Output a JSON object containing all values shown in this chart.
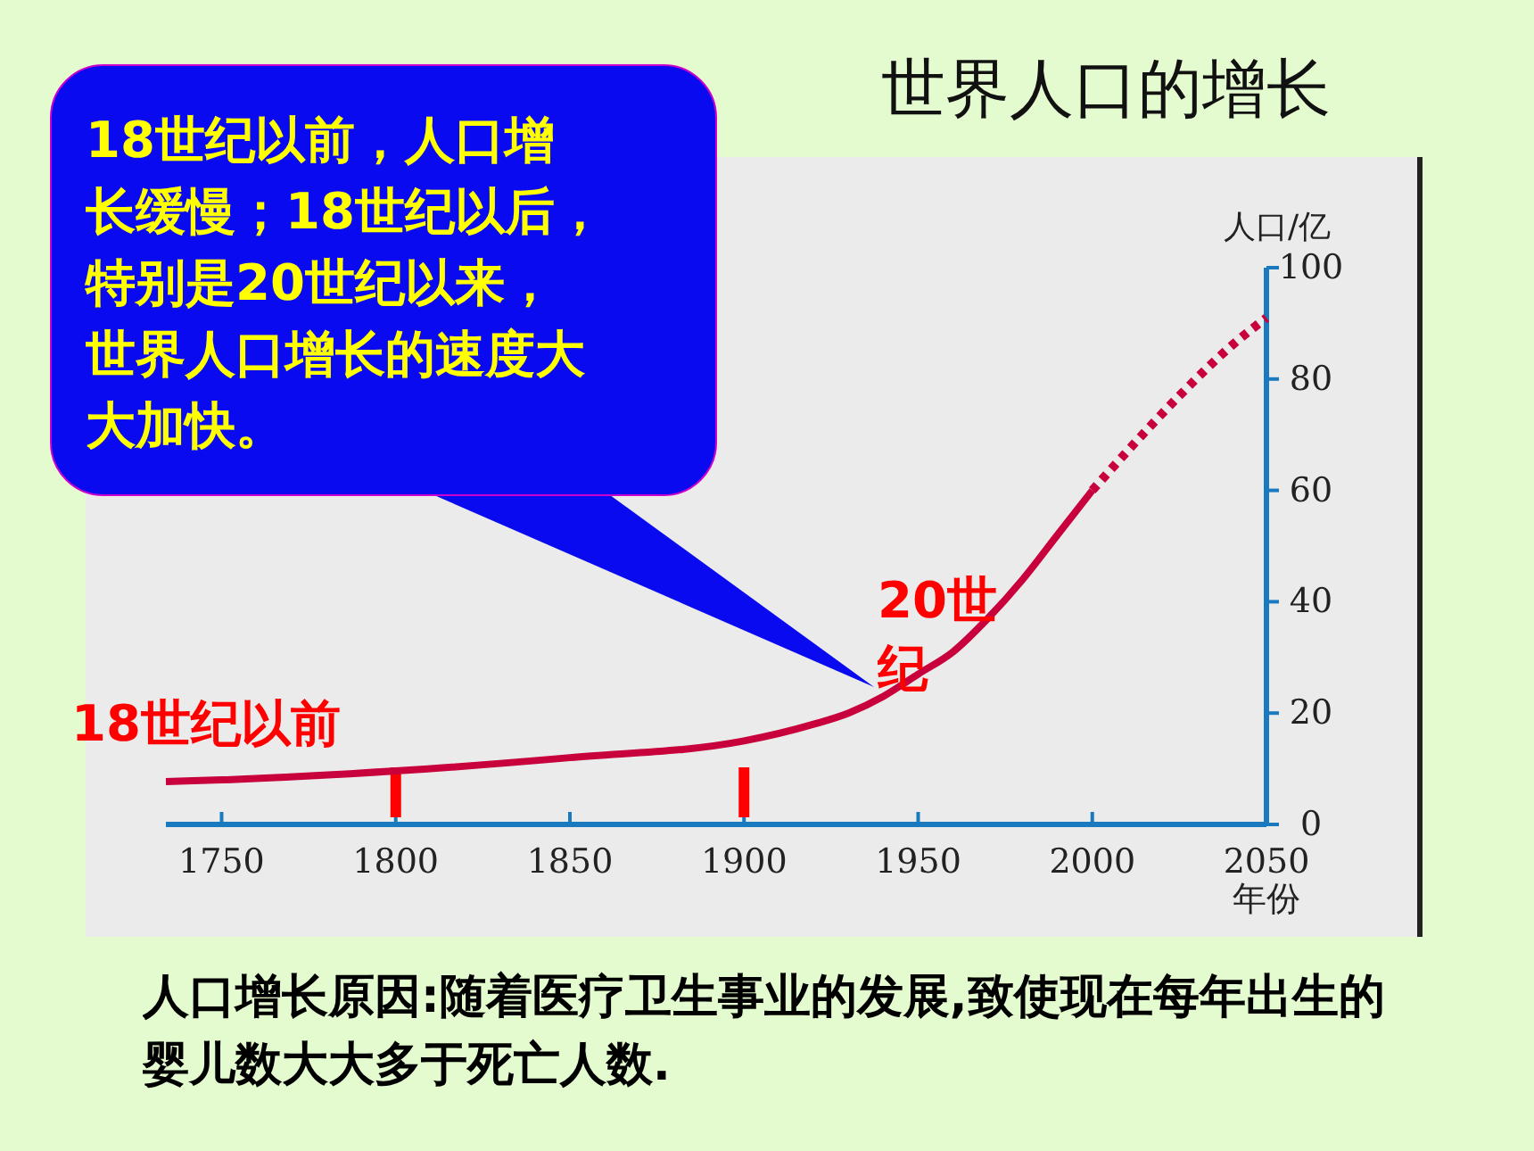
{
  "chart_data": {
    "type": "line",
    "title": "世界人口的增长",
    "xlabel": "年份",
    "ylabel": "人口/亿",
    "xlim": [
      1734,
      2050
    ],
    "xticks": [
      1750,
      1800,
      1850,
      1900,
      1950,
      2000,
      2050
    ],
    "ylim": [
      0,
      100
    ],
    "yticks": [
      0,
      20,
      40,
      60,
      80,
      100
    ],
    "grid": false,
    "marker": "none",
    "series": [
      {
        "color": "#c8003c",
        "line_style": "solid",
        "x": [
          1734,
          1750,
          1800,
          1850,
          1900,
          1920,
          1930,
          1940,
          1950,
          1960,
          1970,
          1980,
          1990,
          2000
        ],
        "values": [
          7.7,
          8,
          9.6,
          12,
          15,
          18,
          20,
          23,
          27,
          31,
          37,
          44,
          52,
          60
        ]
      },
      {
        "color": "#c8003c",
        "line_style": "dotted",
        "x": [
          2000,
          2010,
          2025,
          2040,
          2050
        ],
        "values": [
          60,
          67,
          77,
          86,
          91
        ]
      }
    ],
    "ref_lines": [
      {
        "axis": "x",
        "value": 1800,
        "color": "#ff0000"
      },
      {
        "axis": "x",
        "value": 1900,
        "color": "#ff0000"
      }
    ],
    "annotations": [
      "18世纪以前，人口增长缓慢；18世纪以后，特别是20世纪以来，世界人口增长的速度大大加快。",
      "18世纪以前",
      "20世纪",
      "人口增长原因:随着医疗卫生事业的发展,致使现在每年出生的婴儿数大大多于死亡人数."
    ]
  }
}
